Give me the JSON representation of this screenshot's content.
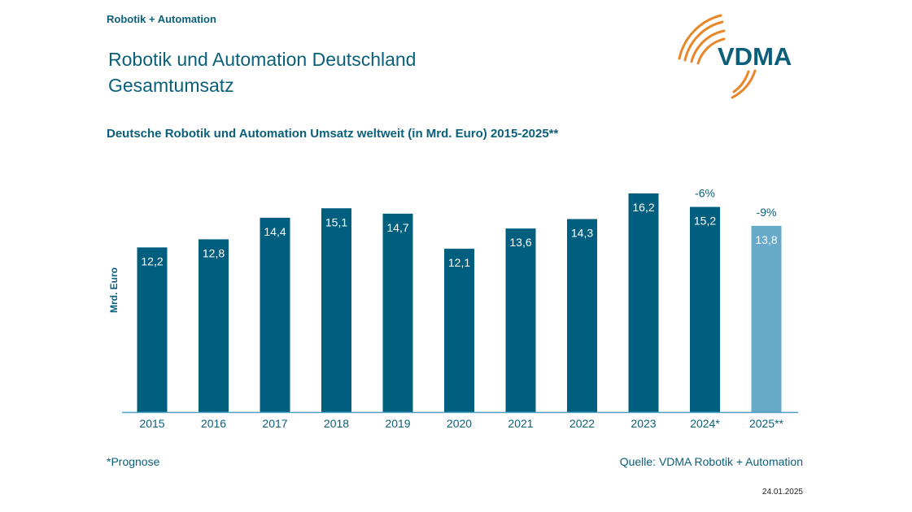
{
  "header": {
    "section": "Robotik + Automation",
    "title_line1": "Robotik und Automation Deutschland",
    "title_line2": "Gesamtumsatz",
    "logo_text": "VDMA"
  },
  "footer": {
    "note": "*Prognose",
    "source": "Quelle: VDMA Robotik + Automation",
    "date": "24.01.2025"
  },
  "colors": {
    "text": "#0a5f7a",
    "bar": "#005f7f",
    "bar_forecast": "#66a9c9",
    "logo_orange": "#e8872a"
  },
  "chart_data": {
    "type": "bar",
    "title": "Deutsche Robotik und Automation Umsatz weltweit (in Mrd. Euro) 2015-2025**",
    "ylabel": "Mrd. Euro",
    "xlabel": "",
    "categories": [
      "2015",
      "2016",
      "2017",
      "2018",
      "2019",
      "2020",
      "2021",
      "2022",
      "2023",
      "2024*",
      "2025**"
    ],
    "values": [
      12.2,
      12.8,
      14.4,
      15.1,
      14.7,
      12.1,
      13.6,
      14.3,
      16.2,
      15.2,
      13.8
    ],
    "data_labels": [
      "12,2",
      "12,8",
      "14,4",
      "15,1",
      "14,7",
      "12,1",
      "13,6",
      "14,3",
      "16,2",
      "15,2",
      "13,8"
    ],
    "forecast": [
      false,
      false,
      false,
      false,
      false,
      false,
      false,
      false,
      false,
      false,
      true
    ],
    "annotations": [
      {
        "category": "2024*",
        "text": "-6%"
      },
      {
        "category": "2025**",
        "text": "-9%"
      }
    ],
    "ylim": [
      0,
      16.2
    ],
    "grid": false,
    "legend": "none"
  }
}
